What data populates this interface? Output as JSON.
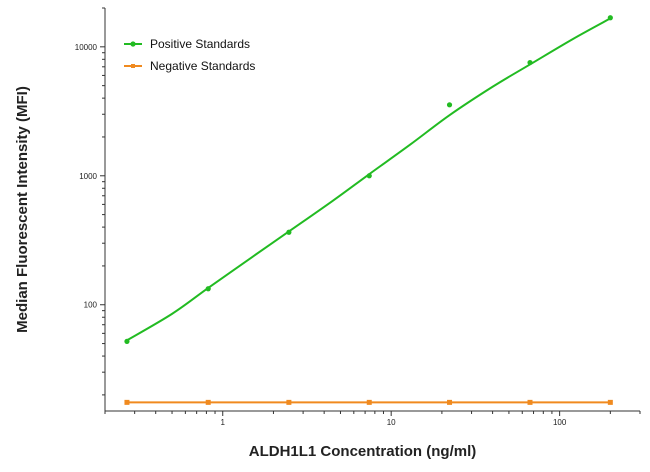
{
  "chart_data": {
    "type": "scatter",
    "xlabel": "ALDH1L1 Concentration (ng/ml)",
    "ylabel": "Median Fluorescent Intensity (MFI)",
    "xscale": "log",
    "yscale": "log",
    "xlim": [
      0.2,
      300
    ],
    "ylim": [
      15,
      20000
    ],
    "x_ticks": [
      {
        "value": 1,
        "label": "1"
      },
      {
        "value": 10,
        "label": "10"
      },
      {
        "value": 100,
        "label": "100"
      }
    ],
    "y_ticks": [
      {
        "value": 100,
        "label": "100"
      },
      {
        "value": 1000,
        "label": "1000"
      },
      {
        "value": 10000,
        "label": "10000"
      }
    ],
    "grid": false,
    "legend_position": "top-left",
    "series": [
      {
        "name": "Positive Standards",
        "color": "#22bb22",
        "marker": "circle",
        "x": [
          0.27,
          0.82,
          2.47,
          7.41,
          22.2,
          66.7,
          200
        ],
        "y": [
          52,
          133,
          365,
          1000,
          3550,
          7550,
          16800
        ],
        "fit_curve": [
          [
            0.27,
            53
          ],
          [
            0.5,
            85
          ],
          [
            0.82,
            135
          ],
          [
            1.5,
            235
          ],
          [
            2.47,
            370
          ],
          [
            4.5,
            640
          ],
          [
            7.41,
            1030
          ],
          [
            13,
            1750
          ],
          [
            22.2,
            2950
          ],
          [
            40,
            4900
          ],
          [
            66.7,
            7300
          ],
          [
            120,
            11500
          ],
          [
            200,
            16600
          ]
        ]
      },
      {
        "name": "Negative Standards",
        "color": "#f08a1f",
        "marker": "square",
        "x": [
          0.27,
          0.82,
          2.47,
          7.41,
          22.2,
          66.7,
          200
        ],
        "y": [
          17.5,
          17.5,
          17.5,
          17.5,
          17.5,
          17.5,
          17.5
        ]
      }
    ]
  }
}
